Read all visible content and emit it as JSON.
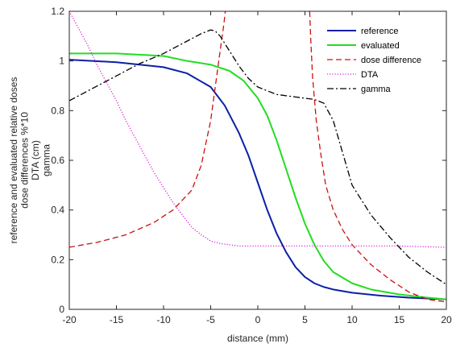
{
  "chart_data": {
    "type": "line",
    "xlabel": "distance (mm)",
    "ylabel_lines": [
      "reference and evaluated relative doses",
      "dose differences %*10",
      "DTA (cm)",
      "gamma"
    ],
    "xlim": [
      -20,
      20
    ],
    "ylim": [
      0,
      1.2
    ],
    "xticks": [
      -20,
      -15,
      -10,
      -5,
      0,
      5,
      10,
      15,
      20
    ],
    "yticks": [
      0,
      0.2,
      0.4,
      0.6,
      0.8,
      1,
      1.2
    ],
    "ytick_labels": [
      "0",
      "0.2",
      "0.4",
      "0.6",
      "0.8",
      "1",
      "1.2"
    ],
    "grid": false,
    "legend_position": "top-right",
    "series": [
      {
        "name": "reference",
        "color": "#0b1fa6",
        "style": "solid",
        "x": [
          -20,
          -15,
          -10,
          -7.5,
          -5,
          -3.5,
          -2,
          -1,
          0,
          1,
          2,
          3,
          4,
          5,
          6,
          7,
          8,
          10,
          13,
          16,
          20
        ],
        "y": [
          1.005,
          0.995,
          0.975,
          0.95,
          0.895,
          0.82,
          0.71,
          0.62,
          0.51,
          0.4,
          0.305,
          0.23,
          0.17,
          0.13,
          0.105,
          0.09,
          0.08,
          0.067,
          0.055,
          0.047,
          0.04
        ]
      },
      {
        "name": "evaluated",
        "color": "#22dd22",
        "style": "solid",
        "x": [
          -20,
          -15,
          -10,
          -7.5,
          -5,
          -3,
          -1.5,
          0,
          1,
          2,
          3,
          4,
          5,
          6,
          7,
          8,
          10,
          12,
          15,
          18,
          20
        ],
        "y": [
          1.03,
          1.03,
          1.02,
          1.0,
          0.985,
          0.96,
          0.92,
          0.85,
          0.78,
          0.68,
          0.565,
          0.45,
          0.345,
          0.26,
          0.195,
          0.15,
          0.105,
          0.08,
          0.06,
          0.047,
          0.04
        ]
      },
      {
        "name": "dose difference",
        "color": "#cc1111",
        "style": "dashed",
        "x": [
          -20,
          -17,
          -14,
          -11,
          -9,
          -7,
          -6,
          -5,
          -4.5,
          -4,
          -3.7,
          -3.5,
          -3.45
        ],
        "y": [
          0.25,
          0.27,
          0.3,
          0.35,
          0.4,
          0.48,
          0.58,
          0.76,
          0.9,
          1.04,
          1.12,
          1.18,
          1.2
        ],
        "x2": [
          5.5,
          5.6,
          5.8,
          6.2,
          6.7,
          7.2,
          8,
          9,
          10,
          12,
          14,
          16,
          18,
          20
        ],
        "y2": [
          1.2,
          1.1,
          0.94,
          0.76,
          0.62,
          0.5,
          0.4,
          0.32,
          0.26,
          0.18,
          0.12,
          0.07,
          0.04,
          0.03
        ]
      },
      {
        "name": "DTA",
        "color": "#dd22dd",
        "style": "dotted",
        "x": [
          -20,
          -19,
          -18,
          -17,
          -16,
          -15,
          -14,
          -13,
          -12,
          -11,
          -10,
          -9,
          -8,
          -7,
          -6,
          -5,
          -4,
          -3,
          -2,
          0,
          5,
          10,
          15,
          20
        ],
        "y": [
          1.2,
          1.13,
          1.06,
          0.98,
          0.91,
          0.84,
          0.76,
          0.69,
          0.62,
          0.55,
          0.49,
          0.43,
          0.38,
          0.33,
          0.3,
          0.275,
          0.265,
          0.26,
          0.255,
          0.255,
          0.255,
          0.255,
          0.255,
          0.25
        ]
      },
      {
        "name": "gamma",
        "color": "#000000",
        "style": "dashdot",
        "x": [
          -20,
          -17.5,
          -15,
          -12.5,
          -10,
          -8,
          -6,
          -5,
          -4.5,
          -4,
          -3,
          -2,
          -1,
          0,
          2,
          4,
          6,
          7,
          8,
          9,
          10,
          12,
          14,
          16,
          18,
          20
        ],
        "y": [
          0.84,
          0.89,
          0.94,
          0.99,
          1.03,
          1.07,
          1.11,
          1.125,
          1.12,
          1.1,
          1.04,
          0.98,
          0.93,
          0.895,
          0.865,
          0.855,
          0.845,
          0.83,
          0.76,
          0.63,
          0.5,
          0.38,
          0.29,
          0.21,
          0.15,
          0.1
        ]
      }
    ]
  }
}
